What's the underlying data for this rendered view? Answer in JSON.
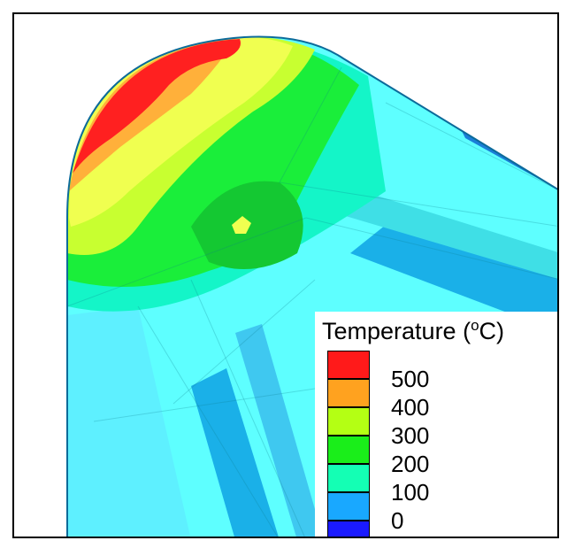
{
  "legend": {
    "title_prefix": "Temperature (",
    "title_sup": "o",
    "title_suffix": "C)",
    "bands": [
      {
        "color": "#ff1a1a"
      },
      {
        "color": "#ffa21f"
      },
      {
        "color": "#b4ff14"
      },
      {
        "color": "#1aee1a"
      },
      {
        "color": "#14ffb4"
      },
      {
        "color": "#19a8ff"
      },
      {
        "color": "#1a1aff"
      }
    ],
    "ticks": [
      "500",
      "400",
      "300",
      "200",
      "100",
      "0"
    ]
  }
}
